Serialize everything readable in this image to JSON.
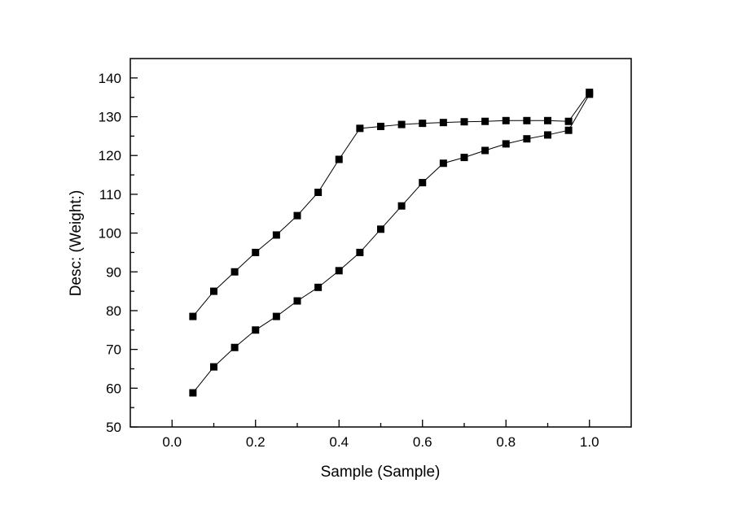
{
  "chart_data": {
    "type": "line",
    "subtype": "scatter-line-two-branch",
    "title": "",
    "xlabel": "Sample (Sample)",
    "ylabel": "Desc: (Weight:)",
    "xlim": [
      -0.1,
      1.1
    ],
    "ylim": [
      50,
      145
    ],
    "grid": "off",
    "legend": "none",
    "marker": "filled-square",
    "marker_color": "#000000",
    "line_color": "#000000",
    "x_major_ticks": [
      0.0,
      0.2,
      0.4,
      0.6,
      0.8,
      1.0
    ],
    "x_major_labels": [
      "0.0",
      "0.2",
      "0.4",
      "0.6",
      "0.8",
      "1.0"
    ],
    "x_minor_ticks": [
      0.1,
      0.3,
      0.5,
      0.7,
      0.9
    ],
    "y_major_ticks": [
      50,
      60,
      70,
      80,
      90,
      100,
      110,
      120,
      130,
      140
    ],
    "y_major_labels": [
      "50",
      "60",
      "70",
      "80",
      "90",
      "100",
      "110",
      "120",
      "130",
      "140"
    ],
    "y_minor_ticks": [
      55,
      65,
      75,
      85,
      95,
      105,
      115,
      125,
      135
    ],
    "x": [
      0.05,
      0.1,
      0.15,
      0.2,
      0.25,
      0.3,
      0.35,
      0.4,
      0.45,
      0.5,
      0.55,
      0.6,
      0.65,
      0.7,
      0.75,
      0.8,
      0.85,
      0.9,
      0.95,
      1.0
    ],
    "series": [
      {
        "name": "upper-branch",
        "values": [
          78.5,
          85.0,
          90.0,
          95.0,
          99.5,
          104.5,
          110.5,
          119.0,
          127.0,
          127.5,
          128.0,
          128.3,
          128.5,
          128.7,
          128.8,
          129.0,
          129.0,
          129.0,
          128.8,
          136.3
        ]
      },
      {
        "name": "lower-branch",
        "values": [
          58.8,
          65.5,
          70.5,
          75.0,
          78.5,
          82.5,
          86.0,
          90.3,
          95.0,
          101.0,
          107.0,
          113.0,
          118.0,
          119.5,
          121.3,
          123.0,
          124.3,
          125.3,
          126.5,
          135.8
        ]
      }
    ]
  }
}
